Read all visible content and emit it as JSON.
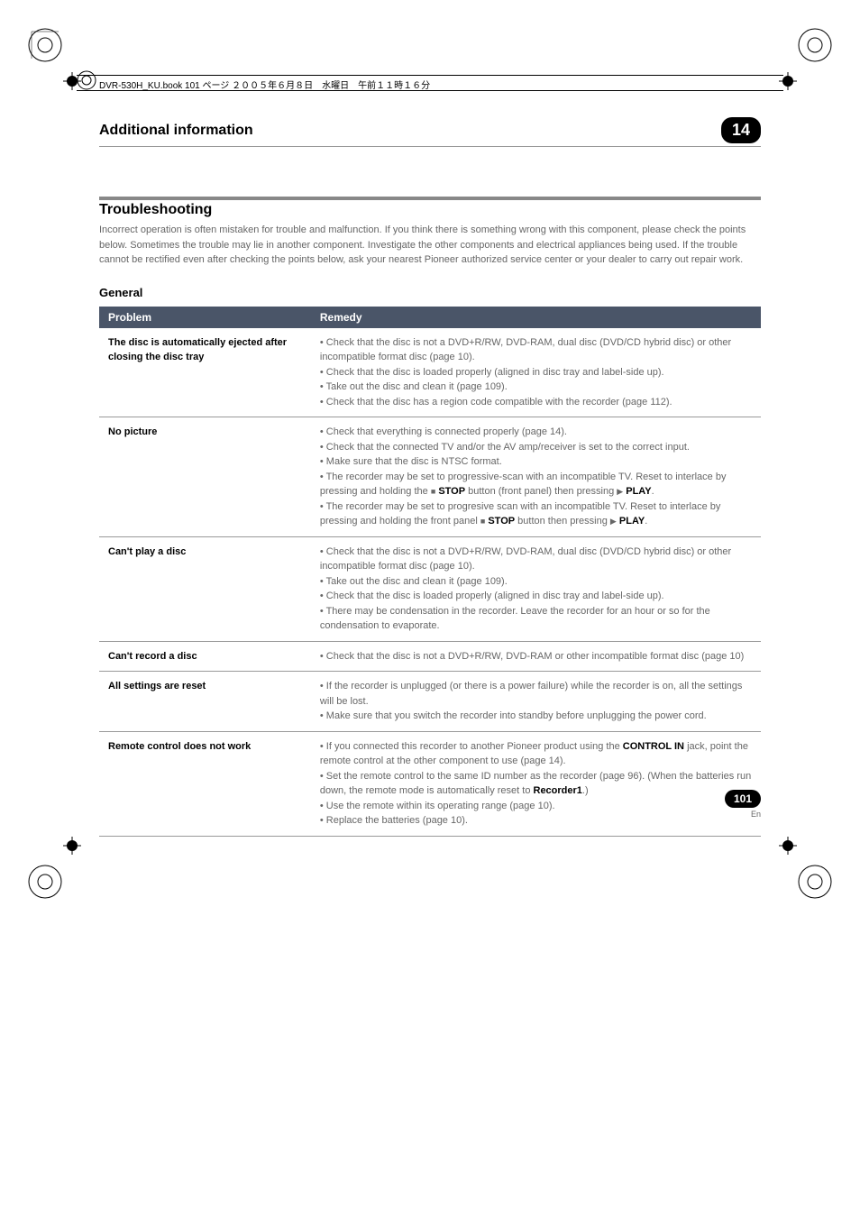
{
  "book_header": "DVR-530H_KU.book 101 ページ ２００５年６月８日　水曜日　午前１１時１６分",
  "chapter": {
    "title": "Additional information",
    "number": "14"
  },
  "section": {
    "title": "Troubleshooting",
    "intro": "Incorrect operation is often mistaken for trouble and malfunction. If you think there is something wrong with this component, please check the points below. Sometimes the trouble may lie in another component. Investigate the other components and electrical appliances being used. If the trouble cannot be rectified even after checking the points below, ask your nearest Pioneer authorized service center or your dealer to carry out repair work."
  },
  "subsection": {
    "title": "General"
  },
  "table": {
    "headers": [
      "Problem",
      "Remedy"
    ],
    "rows": [
      {
        "problem": "The disc is automatically ejected after closing the disc tray",
        "remedy_html": "• Check that the disc is not a DVD+R/RW, DVD-RAM, dual disc (DVD/CD hybrid disc) or other incompatible format disc (page 10).<br>• Check that the disc is loaded properly (aligned in disc tray and label-side up).<br>• Take out the disc and clean it (page 109).<br>• Check that the disc has a region code compatible with the recorder (page 112)."
      },
      {
        "problem": "No picture",
        "remedy_html": "• Check that everything is connected properly (page 14).<br>• Check that the connected TV and/or the AV amp/receiver is set to the correct input.<br>• Make sure that the disc is NTSC format.<br>• The recorder may be set to progressive-scan with an incompatible TV. Reset to interlace by pressing and holding the <span class='stop-icon'></span> <span class='bold-inline'>STOP</span> button (front panel) then pressing <span class='play-icon'></span> <span class='bold-inline'>PLAY</span>.<br>• The recorder may be set to progresive scan with an incompatible TV. Reset to interlace by pressing and holding the front panel <span class='stop-icon'></span> <span class='bold-inline'>STOP</span> button then pressing <span class='play-icon'></span> <span class='bold-inline'>PLAY</span>."
      },
      {
        "problem": "Can't play a disc",
        "remedy_html": "• Check that the disc is not a DVD+R/RW, DVD-RAM, dual disc (DVD/CD hybrid disc) or other incompatible format disc (page 10).<br>• Take out the disc and clean it (page 109).<br>• Check that the disc is loaded properly (aligned in disc tray and label-side up).<br>• There may be condensation in the recorder. Leave the recorder for an hour or so for the condensation to evaporate."
      },
      {
        "problem": "Can't record a disc",
        "remedy_html": "• Check that the disc is not a DVD+R/RW, DVD-RAM or other incompatible format disc (page 10)"
      },
      {
        "problem": "All settings are reset",
        "remedy_html": "• If the recorder is unplugged (or there is a power failure) while the recorder is on, all the settings will be lost.<br>• Make sure that you switch the recorder into standby before unplugging the power cord."
      },
      {
        "problem": "Remote control does not work",
        "remedy_html": "• If you connected this recorder to another Pioneer product using the <span class='bold-inline'>CONTROL IN</span> jack, point the remote control at the other component to use (page 14).<br>• Set the remote control to the same ID number as the recorder (page 96). (When the batteries run down, the remote mode is automatically reset to <span class='bold-inline'>Recorder1</span>.)<br>• Use the remote within its operating range (page 10).<br>• Replace the batteries (page 10)."
      }
    ]
  },
  "footer": {
    "page_number": "101",
    "lang": "En"
  },
  "colors": {
    "header_bg": "#4a5568",
    "text_primary": "#000000",
    "text_secondary": "#666666",
    "border": "#999999",
    "section_bar": "#888888"
  }
}
